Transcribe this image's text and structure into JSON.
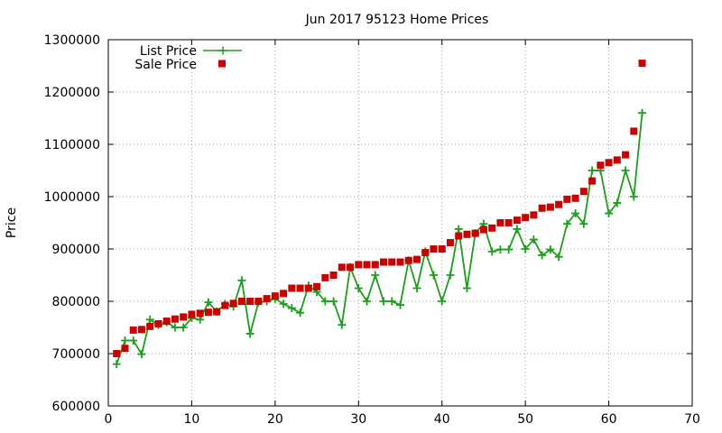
{
  "chart_data": {
    "type": "line",
    "title": "Jun 2017 95123 Home Prices",
    "xlabel": "",
    "ylabel": "Price",
    "xlim": [
      0,
      70
    ],
    "ylim": [
      600000,
      1300000
    ],
    "xticks": [
      0,
      10,
      20,
      30,
      40,
      50,
      60,
      70
    ],
    "yticks": [
      600000,
      700000,
      800000,
      900000,
      1000000,
      1100000,
      1200000,
      1300000
    ],
    "xtick_labels": [
      "0",
      "10",
      "20",
      "30",
      "40",
      "50",
      "60",
      "70"
    ],
    "ytick_labels": [
      "600000",
      "700000",
      "800000",
      "900000",
      "1000000",
      "1100000",
      "1200000",
      "1300000"
    ],
    "grid": true,
    "legend_position": "top-left",
    "colors": {
      "list": "#1aa01a",
      "sale": "#cc0000"
    },
    "series": [
      {
        "name": "List Price",
        "style": "line+cross",
        "x": [
          1,
          2,
          3,
          4,
          5,
          6,
          7,
          8,
          9,
          10,
          11,
          12,
          13,
          14,
          15,
          16,
          17,
          18,
          19,
          20,
          21,
          22,
          23,
          24,
          25,
          26,
          27,
          28,
          29,
          30,
          31,
          32,
          33,
          34,
          35,
          36,
          37,
          38,
          39,
          40,
          41,
          42,
          43,
          44,
          45,
          46,
          47,
          48,
          49,
          50,
          51,
          52,
          53,
          54,
          55,
          56,
          57,
          58,
          59,
          60,
          61,
          62,
          63,
          64
        ],
        "values": [
          680000,
          725000,
          725000,
          699000,
          765000,
          755000,
          760000,
          750000,
          750000,
          768000,
          765000,
          798000,
          780000,
          795000,
          790000,
          840000,
          738000,
          798000,
          800000,
          805000,
          795000,
          787000,
          778000,
          830000,
          818000,
          800000,
          800000,
          755000,
          865000,
          825000,
          800000,
          850000,
          800000,
          800000,
          793000,
          878000,
          825000,
          895000,
          850000,
          800000,
          850000,
          938000,
          825000,
          930000,
          948000,
          895000,
          899000,
          899000,
          938000,
          900000,
          918000,
          888000,
          899000,
          885000,
          948000,
          968000,
          948000,
          1050000,
          1050000,
          968000,
          988000,
          1050000,
          1000000,
          1160000
        ]
      },
      {
        "name": "Sale Price",
        "style": "square",
        "x": [
          1,
          2,
          3,
          4,
          5,
          6,
          7,
          8,
          9,
          10,
          11,
          12,
          13,
          14,
          15,
          16,
          17,
          18,
          19,
          20,
          21,
          22,
          23,
          24,
          25,
          26,
          27,
          28,
          29,
          30,
          31,
          32,
          33,
          34,
          35,
          36,
          37,
          38,
          39,
          40,
          41,
          42,
          43,
          44,
          45,
          46,
          47,
          48,
          49,
          50,
          51,
          52,
          53,
          54,
          55,
          56,
          57,
          58,
          59,
          60,
          61,
          62,
          63,
          64
        ],
        "values": [
          700000,
          710000,
          745000,
          746000,
          752000,
          757000,
          762000,
          766000,
          770000,
          775000,
          777000,
          779000,
          780000,
          792000,
          796000,
          800000,
          800000,
          800000,
          805000,
          810000,
          815000,
          825000,
          825000,
          825000,
          828000,
          845000,
          850000,
          865000,
          865000,
          870000,
          870000,
          870000,
          875000,
          875000,
          875000,
          878000,
          880000,
          893000,
          900000,
          900000,
          912000,
          925000,
          928000,
          930000,
          937000,
          940000,
          950000,
          950000,
          955000,
          960000,
          965000,
          978000,
          980000,
          985000,
          995000,
          997000,
          1010000,
          1030000,
          1060000,
          1065000,
          1070000,
          1080000,
          1125000,
          1255000
        ]
      }
    ]
  }
}
